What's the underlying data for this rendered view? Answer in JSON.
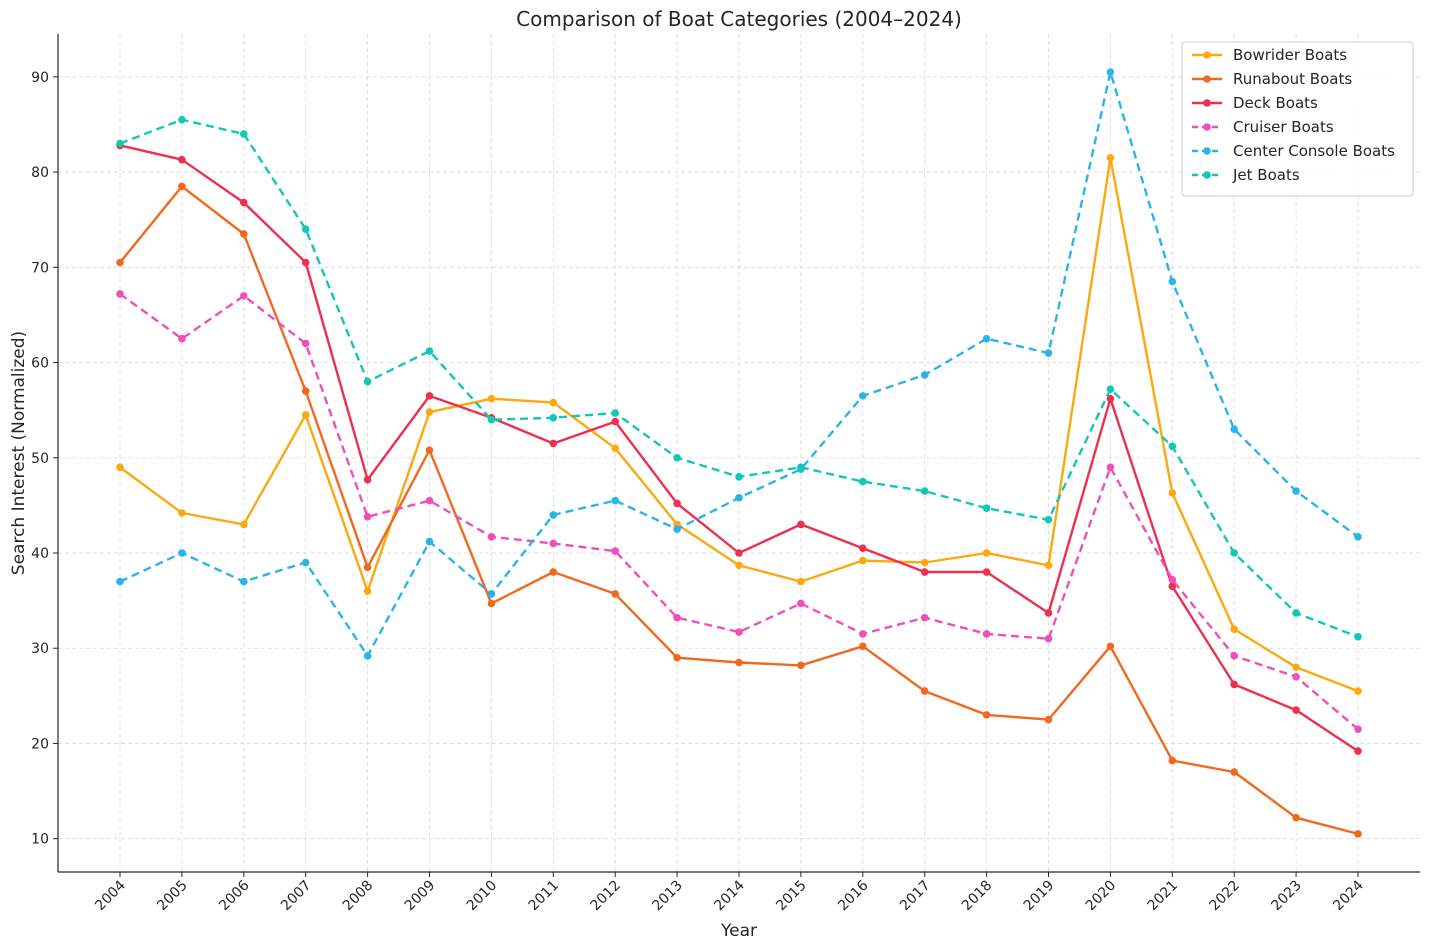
{
  "chart_data": {
    "type": "line",
    "title": "Comparison of Boat Categories (2004–2024)",
    "xlabel": "Year",
    "ylabel": "Search Interest (Normalized)",
    "x": [
      "2004",
      "2005",
      "2006",
      "2007",
      "2008",
      "2009",
      "2010",
      "2011",
      "2012",
      "2013",
      "2014",
      "2015",
      "2016",
      "2017",
      "2018",
      "2019",
      "2020",
      "2021",
      "2022",
      "2023",
      "2024"
    ],
    "ylim": [
      6.5,
      94.5
    ],
    "yticks": [
      10,
      20,
      30,
      40,
      50,
      60,
      70,
      80,
      90
    ],
    "grid": true,
    "legend_position": "top-right",
    "series": [
      {
        "name": "Bowrider Boats",
        "color": "#fca90f",
        "dashed": false,
        "values": [
          49,
          44.2,
          43,
          54.5,
          36,
          54.8,
          56.2,
          55.8,
          51,
          43,
          38.7,
          37,
          39.2,
          39,
          40,
          38.7,
          81.5,
          46.3,
          32,
          28,
          25.5
        ]
      },
      {
        "name": "Runabout Boats",
        "color": "#f0691f",
        "dashed": false,
        "values": [
          70.5,
          78.5,
          73.5,
          57,
          38.5,
          50.8,
          34.7,
          38,
          35.7,
          29,
          28.5,
          28.2,
          30.2,
          25.5,
          23,
          22.5,
          30.2,
          18.2,
          17,
          12.2,
          10.5
        ]
      },
      {
        "name": "Deck Boats",
        "color": "#ec3050",
        "dashed": false,
        "values": [
          82.8,
          81.3,
          76.8,
          70.5,
          47.7,
          56.5,
          54.2,
          51.5,
          53.8,
          45.2,
          40,
          43,
          40.5,
          38,
          38,
          33.7,
          56.2,
          36.5,
          26.2,
          23.5,
          19.2
        ]
      },
      {
        "name": "Cruiser Boats",
        "color": "#f04fbb",
        "dashed": true,
        "values": [
          67.2,
          62.5,
          67,
          62,
          43.8,
          45.5,
          41.7,
          41,
          40.2,
          33.2,
          31.7,
          34.7,
          31.5,
          33.2,
          31.5,
          31,
          49,
          37.2,
          29.2,
          27,
          21.5
        ]
      },
      {
        "name": "Center Console Boats",
        "color": "#29b5ea",
        "dashed": true,
        "values": [
          37,
          40,
          37,
          39,
          29.2,
          41.2,
          35.7,
          44,
          45.5,
          42.5,
          45.8,
          48.8,
          56.5,
          58.7,
          62.5,
          61,
          90.5,
          68.5,
          53,
          46.5,
          41.7
        ]
      },
      {
        "name": "Jet Boats",
        "color": "#12c7b4",
        "dashed": true,
        "values": [
          83,
          85.5,
          84,
          74,
          58,
          61.2,
          54,
          54.2,
          54.7,
          50,
          48,
          49,
          47.5,
          46.5,
          44.7,
          43.5,
          57.2,
          51.2,
          40,
          33.7,
          31.2
        ]
      }
    ]
  }
}
